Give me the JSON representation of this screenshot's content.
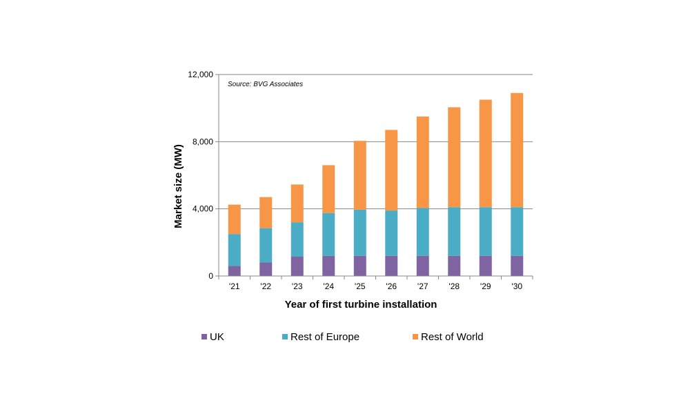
{
  "chart_data": {
    "type": "bar",
    "stacked": true,
    "categories": [
      "'21",
      "'22",
      "'23",
      "'24",
      "'25",
      "'26",
      "'27",
      "'28",
      "'29",
      "'30"
    ],
    "series": [
      {
        "name": "UK",
        "color": "#8064a2",
        "values": [
          600,
          800,
          1150,
          1200,
          1200,
          1200,
          1200,
          1200,
          1200,
          1200
        ]
      },
      {
        "name": "Rest of Europe",
        "color": "#4bacc6",
        "values": [
          1900,
          2050,
          2050,
          2550,
          2750,
          2700,
          2850,
          2900,
          2900,
          2900
        ]
      },
      {
        "name": "Rest of World",
        "color": "#f79646",
        "values": [
          1750,
          1850,
          2250,
          2850,
          4100,
          4800,
          5450,
          5950,
          6400,
          6800
        ]
      }
    ],
    "annotation": "Source: BVG Associates",
    "xlabel": "Year of first turbine installation",
    "ylabel": "Market size (MW)",
    "yticks": [
      "0",
      "4,000",
      "8,000",
      "12,000"
    ],
    "ylim": [
      0,
      12000
    ],
    "grid": true,
    "legend_position": "bottom"
  }
}
